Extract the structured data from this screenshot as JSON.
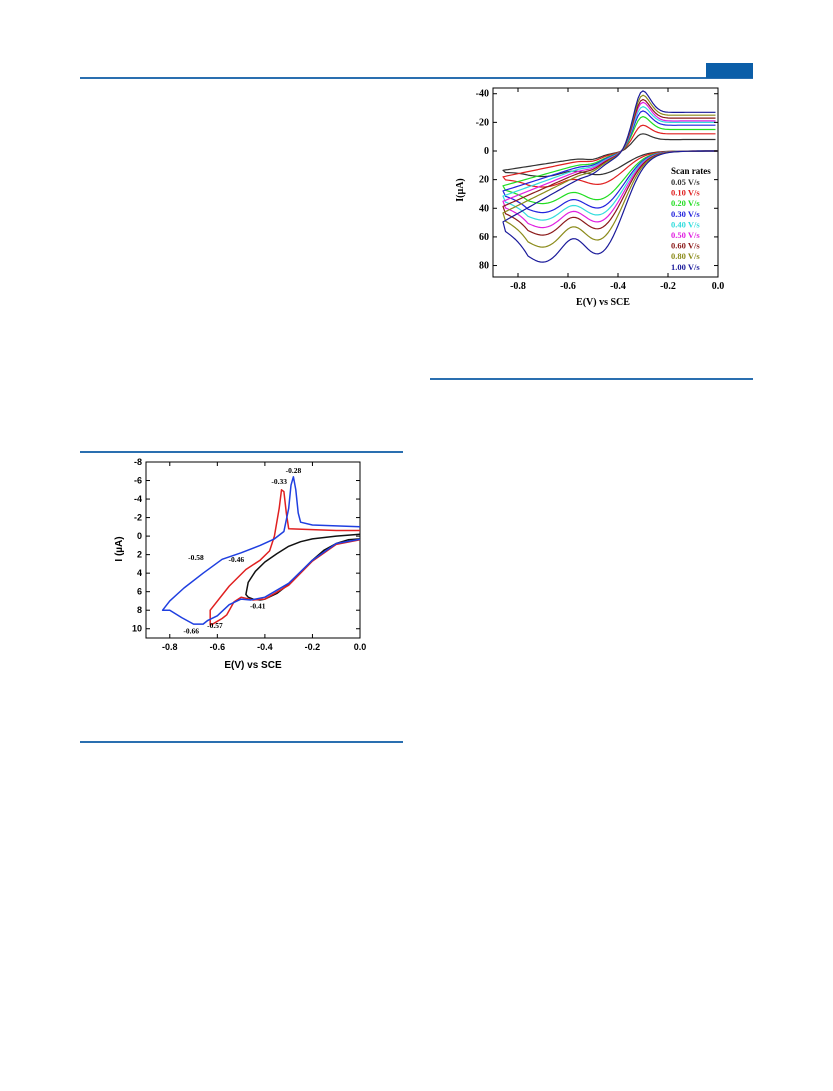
{
  "page": {
    "accent_color": "#2a6fb0",
    "tab_color": "#0b5ea8"
  },
  "chart_data": [
    {
      "type": "line",
      "panel": "cyclic-voltammograms-redox-peaks",
      "xlabel": "E(V) vs SCE",
      "ylabel": "I (µA)",
      "xlim": [
        -0.9,
        0.0
      ],
      "ylim": [
        11,
        -8
      ],
      "y_inverted": true,
      "x_ticks": [
        "-0.8",
        "-0.6",
        "-0.4",
        "-0.2",
        "0.0"
      ],
      "y_ticks": [
        "-8",
        "-6",
        "-4",
        "-2",
        "0",
        "2",
        "4",
        "6",
        "8",
        "10"
      ],
      "grid": false,
      "annotations": [
        {
          "text": "-0.28",
          "x": -0.28,
          "y": -6.8
        },
        {
          "text": "-0.33",
          "x": -0.34,
          "y": -5.6
        },
        {
          "text": "-0.58",
          "x": -0.69,
          "y": 2.6
        },
        {
          "text": "-0.46",
          "x": -0.52,
          "y": 2.8
        },
        {
          "text": "-0.41",
          "x": -0.43,
          "y": 7.8
        },
        {
          "text": "-0.57",
          "x": -0.61,
          "y": 9.9
        },
        {
          "text": "-0.66",
          "x": -0.71,
          "y": 10.5
        }
      ],
      "series": [
        {
          "color": "#111111",
          "values": [
            [
              0.0,
              0.3
            ],
            [
              -0.05,
              0.4
            ],
            [
              -0.1,
              0.8
            ],
            [
              -0.15,
              1.5
            ],
            [
              -0.2,
              2.6
            ],
            [
              -0.25,
              3.9
            ],
            [
              -0.3,
              5.2
            ],
            [
              -0.35,
              6.2
            ],
            [
              -0.4,
              6.8
            ],
            [
              -0.42,
              6.9
            ],
            [
              -0.45,
              6.8
            ],
            [
              -0.47,
              6.6
            ],
            [
              -0.48,
              6.3
            ],
            [
              -0.47,
              5.0
            ],
            [
              -0.44,
              3.8
            ],
            [
              -0.4,
              2.8
            ],
            [
              -0.35,
              1.9
            ],
            [
              -0.3,
              1.1
            ],
            [
              -0.25,
              0.6
            ],
            [
              -0.2,
              0.3
            ],
            [
              -0.1,
              0.0
            ],
            [
              0.0,
              -0.2
            ]
          ]
        },
        {
          "color": "#e02020",
          "values": [
            [
              0.0,
              0.4
            ],
            [
              -0.1,
              0.9
            ],
            [
              -0.2,
              2.7
            ],
            [
              -0.3,
              5.3
            ],
            [
              -0.4,
              6.8
            ],
            [
              -0.45,
              6.9
            ],
            [
              -0.5,
              6.6
            ],
            [
              -0.53,
              7.1
            ],
            [
              -0.56,
              8.5
            ],
            [
              -0.58,
              8.9
            ],
            [
              -0.6,
              9.2
            ],
            [
              -0.62,
              9.5
            ],
            [
              -0.63,
              9.6
            ],
            [
              -0.63,
              8.0
            ],
            [
              -0.55,
              5.4
            ],
            [
              -0.48,
              3.6
            ],
            [
              -0.42,
              2.6
            ],
            [
              -0.38,
              1.6
            ],
            [
              -0.36,
              0.0
            ],
            [
              -0.34,
              -3.0
            ],
            [
              -0.33,
              -5.0
            ],
            [
              -0.32,
              -4.8
            ],
            [
              -0.31,
              -2.5
            ],
            [
              -0.3,
              -0.8
            ],
            [
              -0.2,
              -0.7
            ],
            [
              -0.1,
              -0.6
            ],
            [
              0.0,
              -0.6
            ]
          ]
        },
        {
          "color": "#1f3fe0",
          "values": [
            [
              0.0,
              0.35
            ],
            [
              -0.1,
              0.8
            ],
            [
              -0.2,
              2.6
            ],
            [
              -0.3,
              5.1
            ],
            [
              -0.4,
              6.6
            ],
            [
              -0.46,
              6.9
            ],
            [
              -0.5,
              6.8
            ],
            [
              -0.55,
              7.4
            ],
            [
              -0.6,
              8.6
            ],
            [
              -0.64,
              9.1
            ],
            [
              -0.66,
              9.5
            ],
            [
              -0.7,
              9.5
            ],
            [
              -0.75,
              8.8
            ],
            [
              -0.8,
              8.0
            ],
            [
              -0.83,
              8.0
            ],
            [
              -0.8,
              7.0
            ],
            [
              -0.74,
              5.6
            ],
            [
              -0.66,
              4.0
            ],
            [
              -0.58,
              2.5
            ],
            [
              -0.5,
              1.8
            ],
            [
              -0.42,
              1.0
            ],
            [
              -0.36,
              0.3
            ],
            [
              -0.32,
              -0.5
            ],
            [
              -0.3,
              -3.0
            ],
            [
              -0.29,
              -5.5
            ],
            [
              -0.28,
              -6.4
            ],
            [
              -0.27,
              -5.0
            ],
            [
              -0.26,
              -2.5
            ],
            [
              -0.25,
              -1.5
            ],
            [
              -0.2,
              -1.2
            ],
            [
              -0.1,
              -1.1
            ],
            [
              0.0,
              -1.0
            ]
          ]
        }
      ]
    },
    {
      "type": "line",
      "panel": "scan-rate-dependence",
      "xlabel": "E(V) vs SCE",
      "ylabel": "I(µA)",
      "xlim": [
        -0.9,
        0.0
      ],
      "ylim": [
        88,
        -44
      ],
      "y_inverted": true,
      "x_ticks": [
        "-0.8",
        "-0.6",
        "-0.4",
        "-0.2",
        "0.0"
      ],
      "y_ticks": [
        "-40",
        "-20",
        "0",
        "20",
        "40",
        "60",
        "80"
      ],
      "grid": false,
      "legend_title": "Scan rates",
      "legend_position": "right",
      "series": [
        {
          "name": "0.05 V/s",
          "color": "#333333",
          "cathodic_peak": 17,
          "anodic_peak": -12,
          "neg_limit": 15,
          "plateau": -8
        },
        {
          "name": "0.10 V/s",
          "color": "#e02020",
          "cathodic_peak": 24,
          "anodic_peak": -18,
          "neg_limit": 20,
          "plateau": -12
        },
        {
          "name": "0.20 V/s",
          "color": "#22dd22",
          "cathodic_peak": 35,
          "anodic_peak": -24,
          "neg_limit": 27,
          "plateau": -15
        },
        {
          "name": "0.30 V/s",
          "color": "#2222dd",
          "cathodic_peak": 41,
          "anodic_peak": -28,
          "neg_limit": 31,
          "plateau": -18
        },
        {
          "name": "0.40 V/s",
          "color": "#33dddd",
          "cathodic_peak": 46,
          "anodic_peak": -31,
          "neg_limit": 35,
          "plateau": -20
        },
        {
          "name": "0.50 V/s",
          "color": "#e020e0",
          "cathodic_peak": 51,
          "anodic_peak": -34,
          "neg_limit": 39,
          "plateau": -21
        },
        {
          "name": "0.60 V/s",
          "color": "#8b1a1a",
          "cathodic_peak": 56,
          "anodic_peak": -36,
          "neg_limit": 43,
          "plateau": -23
        },
        {
          "name": "0.80 V/s",
          "color": "#8b8b1a",
          "cathodic_peak": 64,
          "anodic_peak": -39,
          "neg_limit": 48,
          "plateau": -25
        },
        {
          "name": "1.00 V/s",
          "color": "#1a1a9a",
          "cathodic_peak": 74,
          "anodic_peak": -42,
          "neg_limit": 55,
          "plateau": -27
        }
      ]
    }
  ]
}
